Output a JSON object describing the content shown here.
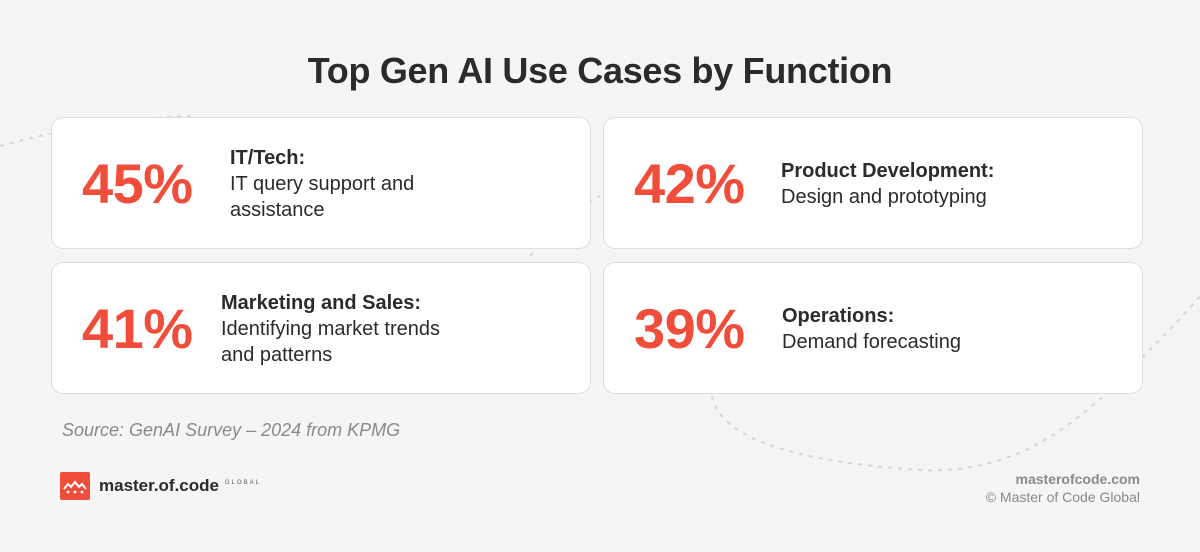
{
  "title": "Top Gen AI Use Cases by Function",
  "cards": [
    {
      "percent": "45%",
      "label": "IT/Tech:",
      "lines": [
        "IT query support and",
        "assistance"
      ]
    },
    {
      "percent": "42%",
      "label": "Product Development:",
      "lines": [
        "Design and prototyping"
      ]
    },
    {
      "percent": "41%",
      "label": "Marketing and Sales:",
      "lines": [
        "Identifying market trends",
        "and patterns"
      ]
    },
    {
      "percent": "39%",
      "label": "Operations:",
      "lines": [
        "Demand forecasting"
      ]
    }
  ],
  "source": "Source: GenAI Survey – 2024 from KPMG",
  "brand": {
    "name": "master.of.code",
    "sub": "GLOBAL"
  },
  "footer": {
    "site": "masterofcode.com",
    "copyright": "© Master of Code Global"
  },
  "colors": {
    "accent": "#f04e3a",
    "text": "#2b2b2b",
    "background": "#f5f5f5",
    "card": "#ffffff",
    "muted": "#8a8a8a"
  }
}
